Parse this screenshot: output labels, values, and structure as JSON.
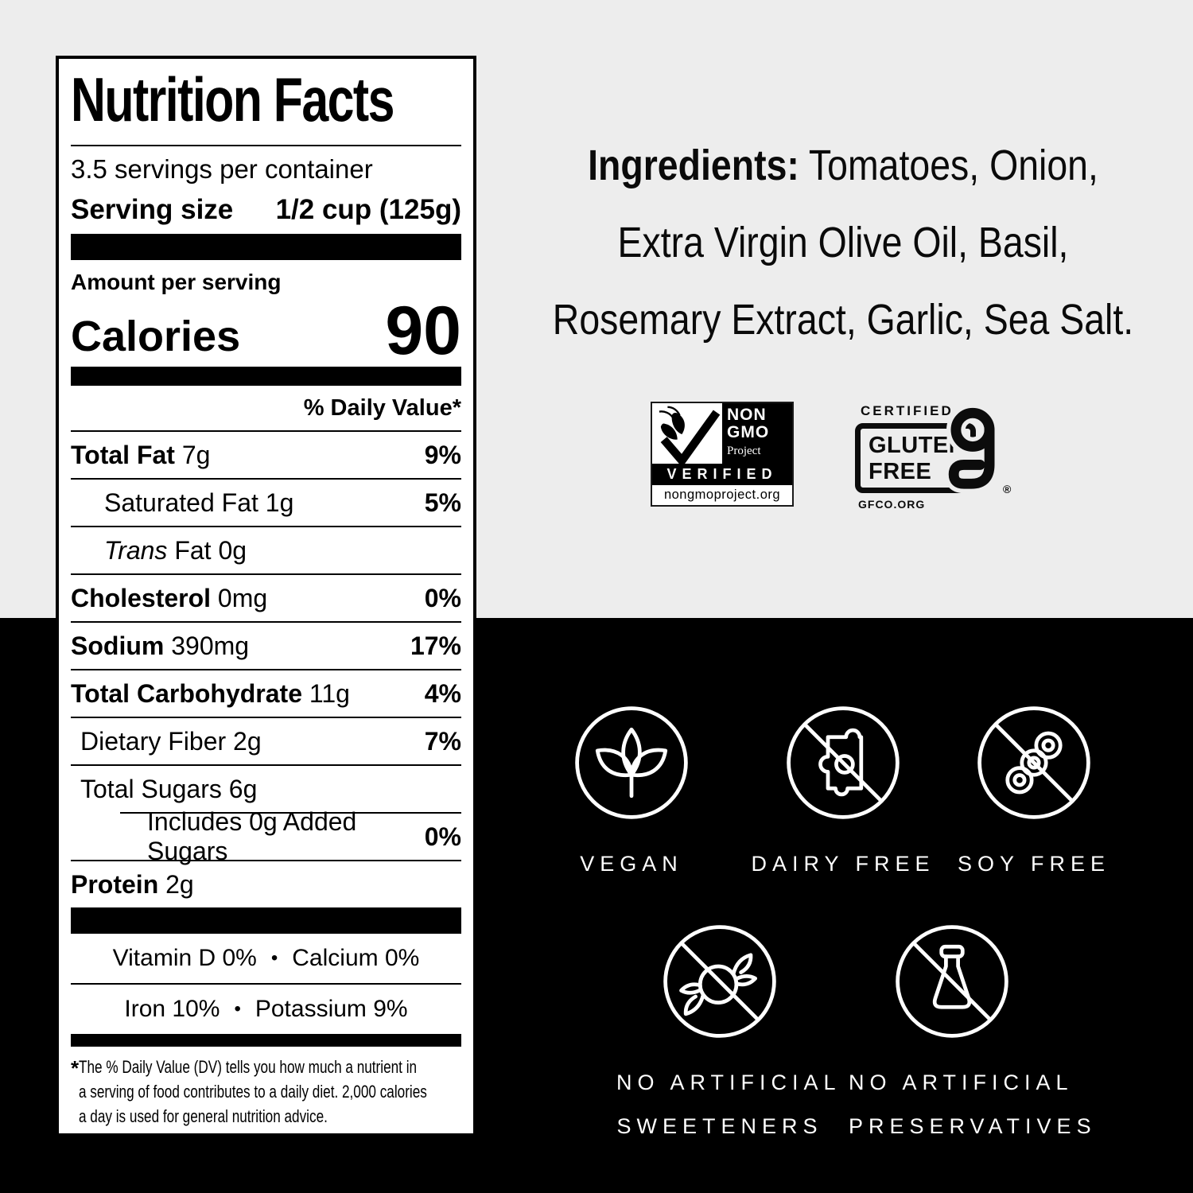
{
  "page": {
    "bg_top_color": "#ededed",
    "bg_bottom_color": "#000000",
    "label_bg": "#ffffff",
    "ink": "#000000"
  },
  "nutrition_label": {
    "title": "Nutrition Facts",
    "servings_per_container": "3.5 servings per container",
    "serving_size_label": "Serving size",
    "serving_size_value": "1/2 cup (125g)",
    "amount_per_serving_label": "Amount per serving",
    "calories_label": "Calories",
    "calories_value": "90",
    "daily_value_header": "% Daily Value*",
    "rows": [
      {
        "name": "Total Fat",
        "amount": "7g",
        "dv": "9%",
        "bold": true,
        "indent": 0
      },
      {
        "name": "Saturated Fat",
        "amount": "1g",
        "dv": "5%",
        "bold": false,
        "indent": 1
      },
      {
        "name": "Trans Fat",
        "amount": "0g",
        "dv": "",
        "bold": false,
        "indent": 1,
        "italic_first": true
      },
      {
        "name": "Cholesterol",
        "amount": "0mg",
        "dv": "0%",
        "bold": true,
        "indent": 0
      },
      {
        "name": "Sodium",
        "amount": "390mg",
        "dv": "17%",
        "bold": true,
        "indent": 0
      },
      {
        "name": "Total Carbohydrate",
        "amount": "11g",
        "dv": "4%",
        "bold": true,
        "indent": 0
      },
      {
        "name": "Dietary Fiber",
        "amount": "2g",
        "dv": "7%",
        "bold": false,
        "indent": 0.5
      },
      {
        "name": "Total Sugars",
        "amount": "6g",
        "dv": "",
        "bold": false,
        "indent": 0.5,
        "rule_indent": true
      },
      {
        "name": "Includes 0g Added Sugars",
        "amount": "",
        "dv": "0%",
        "bold": false,
        "indent": 2
      },
      {
        "name": "Protein",
        "amount": "2g",
        "dv": "",
        "bold": true,
        "indent": 0
      }
    ],
    "bullet": "•",
    "vitamin_lines": [
      {
        "left": "Vitamin D 0%",
        "right": "Calcium 0%"
      },
      {
        "left": "Iron 10%",
        "right": "Potassium 9%"
      }
    ],
    "footnote_marker": "*",
    "footnote_lines": [
      "The % Daily Value (DV) tells you how much a nutrient in",
      "a serving of food contributes to a daily diet. 2,000 calories",
      "a day is used for general nutrition advice."
    ]
  },
  "ingredients": {
    "lead": "Ingredients:",
    "line1_rest": " Tomatoes, Onion,",
    "line2": "Extra Virgin Olive Oil, Basil,",
    "line3": "Rosemary Extract, Garlic, Sea Salt."
  },
  "badges": {
    "non_gmo": {
      "line1": "NON",
      "line2": "GMO",
      "line3": "Project",
      "verified": "VERIFIED",
      "url": "nongmoproject.org"
    },
    "gluten_free": {
      "certified": "CERTIFIED",
      "word1": "GLUTEN",
      "word2": "FREE",
      "registered": "®",
      "org": "GFCO.ORG"
    }
  },
  "seals": {
    "row1": [
      {
        "label": "VEGAN"
      },
      {
        "label": "DAIRY FREE"
      },
      {
        "label": "SOY FREE"
      }
    ],
    "row2": [
      {
        "line1": "NO ARTIFICIAL",
        "line2": "SWEETENERS"
      },
      {
        "line1": "NO ARTIFICIAL",
        "line2": "PRESERVATIVES"
      }
    ]
  }
}
